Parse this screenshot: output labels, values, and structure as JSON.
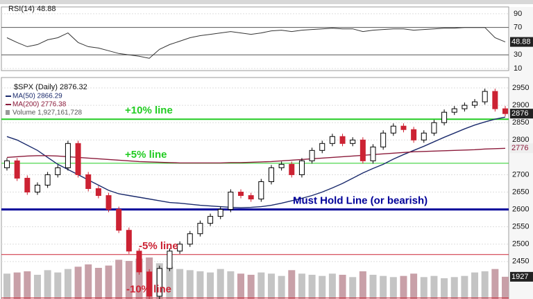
{
  "chart_data": {
    "type": "candlestick",
    "title": "$SPX (Daily) 2876.32",
    "ylim": [
      2342,
      2980
    ],
    "yticks": [
      2450,
      2500,
      2550,
      2600,
      2650,
      2700,
      2800,
      2850,
      2900,
      2950
    ],
    "grid": true,
    "open": [
      2720,
      2740,
      2690,
      2650,
      2670,
      2700,
      2720,
      2790,
      2700,
      2660,
      2640,
      2600,
      2540,
      2480,
      2420,
      2350,
      2430,
      2480,
      2500,
      2530,
      2560,
      2580,
      2600,
      2650,
      2640,
      2630,
      2680,
      2720,
      2730,
      2700,
      2740,
      2770,
      2790,
      2810,
      2790,
      2800,
      2740,
      2780,
      2820,
      2840,
      2830,
      2800,
      2820,
      2850,
      2880,
      2890,
      2900,
      2910,
      2940,
      2890
    ],
    "close": [
      2740,
      2690,
      2650,
      2670,
      2700,
      2720,
      2790,
      2700,
      2660,
      2640,
      2600,
      2540,
      2480,
      2420,
      2350,
      2430,
      2480,
      2500,
      2530,
      2560,
      2580,
      2600,
      2650,
      2640,
      2630,
      2680,
      2720,
      2730,
      2700,
      2740,
      2770,
      2790,
      2810,
      2790,
      2800,
      2740,
      2780,
      2820,
      2840,
      2830,
      2800,
      2820,
      2850,
      2880,
      2890,
      2900,
      2910,
      2940,
      2890,
      2876
    ],
    "close_last_label": "2876",
    "up_color": "#000000",
    "down_color": "#cc2233",
    "series": [
      {
        "name": "MA(50) 2866.29",
        "color": "#1a2a6c",
        "values": [
          2810,
          2800,
          2785,
          2770,
          2750,
          2730,
          2715,
          2700,
          2685,
          2670,
          2655,
          2645,
          2640,
          2635,
          2630,
          2625,
          2620,
          2618,
          2615,
          2612,
          2610,
          2608,
          2606,
          2605,
          2606,
          2608,
          2612,
          2618,
          2625,
          2632,
          2640,
          2650,
          2662,
          2675,
          2690,
          2705,
          2718,
          2730,
          2745,
          2758,
          2770,
          2782,
          2795,
          2808,
          2820,
          2832,
          2843,
          2852,
          2860,
          2866
        ]
      },
      {
        "name": "MA(200) 2776.38",
        "color": "#8b1a3a",
        "values": [
          2750,
          2752,
          2754,
          2755,
          2755,
          2754,
          2752,
          2750,
          2748,
          2746,
          2744,
          2742,
          2740,
          2738,
          2737,
          2736,
          2735,
          2734,
          2734,
          2734,
          2734,
          2734,
          2735,
          2735,
          2736,
          2737,
          2738,
          2740,
          2742,
          2744,
          2746,
          2748,
          2750,
          2752,
          2754,
          2756,
          2758,
          2760,
          2762,
          2764,
          2766,
          2767,
          2768,
          2769,
          2770,
          2771,
          2772,
          2774,
          2775,
          2776
        ],
        "last_label": "2776"
      }
    ],
    "levels": [
      {
        "label": "+10% line",
        "value": 2860,
        "color": "#22cc22",
        "width": 2
      },
      {
        "label": "+5% line",
        "value": 2733,
        "color": "#22cc22",
        "width": 1
      },
      {
        "label": "Must Hold Line (or bearish)",
        "value": 2600,
        "color": "#000099",
        "width": 3
      },
      {
        "label": "-5% line",
        "value": 2470,
        "color": "#cc2233",
        "width": 1
      },
      {
        "label": "-10% line",
        "value": 2345,
        "color": "#cc2233",
        "width": 1
      }
    ],
    "volume": {
      "name": "Volume 1,927,161,728",
      "ylim": [
        0,
        6000
      ],
      "color": "#c8a0a8",
      "values": [
        2200,
        2300,
        2400,
        2100,
        2500,
        2300,
        2600,
        2800,
        3000,
        2700,
        2900,
        3400,
        3300,
        3500,
        3600,
        3100,
        2800,
        2600,
        2500,
        2400,
        2300,
        2600,
        2400,
        2200,
        2100,
        2300,
        2200,
        2000,
        2500,
        2200,
        2100,
        2000,
        2200,
        2100,
        1900,
        2400,
        2100,
        2000,
        1900,
        2000,
        2200,
        1900,
        2000,
        1800,
        1900,
        2000,
        2300,
        2400,
        2600,
        1927
      ],
      "last_label": "1927"
    },
    "rsi": {
      "name": "RSI(14) 48.88",
      "color": "#333333",
      "ylim": [
        7,
        100
      ],
      "yticks": [
        10,
        30,
        70,
        90
      ],
      "values": [
        55,
        48,
        42,
        45,
        52,
        55,
        62,
        48,
        42,
        40,
        36,
        32,
        30,
        28,
        25,
        38,
        45,
        50,
        55,
        58,
        60,
        62,
        64,
        62,
        60,
        62,
        65,
        66,
        64,
        66,
        67,
        68,
        69,
        68,
        68,
        64,
        66,
        67,
        68,
        68,
        66,
        67,
        68,
        69,
        69,
        70,
        70,
        70,
        55,
        48.88
      ],
      "last_label": "48.88"
    }
  }
}
